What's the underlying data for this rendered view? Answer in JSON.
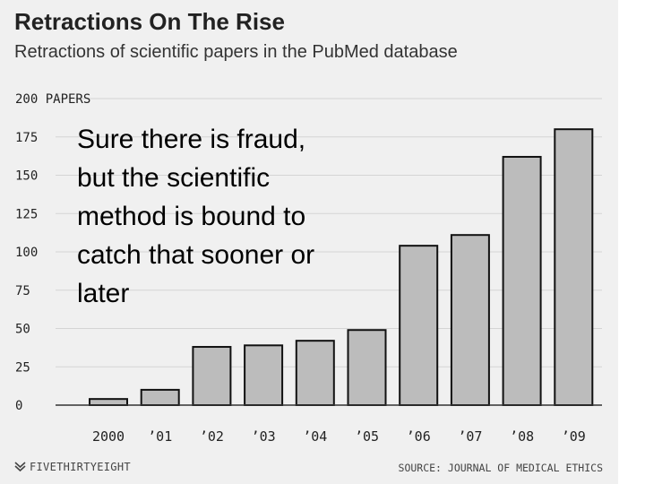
{
  "chart_data": {
    "type": "bar",
    "title": "Retractions On The Rise",
    "subtitle": "Retractions of scientific papers in the PubMed database",
    "categories": [
      "2000",
      "’01",
      "’02",
      "’03",
      "’04",
      "’05",
      "’06",
      "’07",
      "’08",
      "’09"
    ],
    "values": [
      4,
      10,
      38,
      39,
      42,
      49,
      104,
      111,
      162,
      180
    ],
    "ylim": [
      0,
      200
    ],
    "yticks": [
      0,
      25,
      50,
      75,
      100,
      125,
      150,
      175,
      200
    ],
    "ytick_labels": [
      "0",
      "25",
      "50",
      "75",
      "100",
      "125",
      "150",
      "175",
      "200 PAPERS"
    ],
    "xlabel": "",
    "ylabel": "",
    "grid": true,
    "bar_color": "#bcbcbc",
    "bar_outline_color": "#111111"
  },
  "annotation": {
    "lines": [
      "Sure there is fraud,",
      "but the scientific",
      "method is bound to",
      "catch that sooner or",
      "later"
    ]
  },
  "footer": {
    "brand": "FIVETHIRTYEIGHT",
    "brand_icon": "fivethirtyeight-logo-icon",
    "source": "SOURCE: JOURNAL OF MEDICAL ETHICS"
  },
  "colors": {
    "background": "#f0f0f0",
    "gridline": "#d4d4d4",
    "text": "#222222"
  }
}
